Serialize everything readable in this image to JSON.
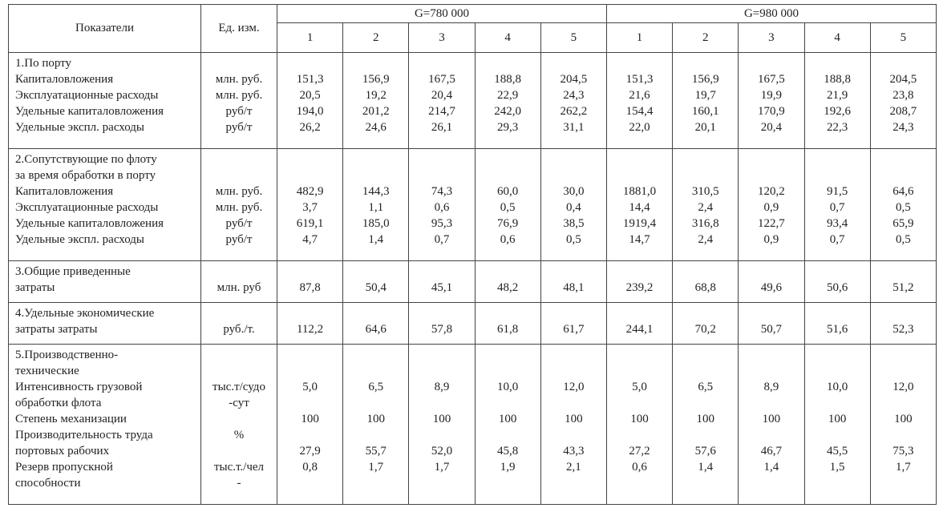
{
  "header": {
    "indicator": "Показатели",
    "unit": "Ед. изм.",
    "groups": [
      {
        "label": "G=780 000",
        "cols": [
          "1",
          "2",
          "3",
          "4",
          "5"
        ]
      },
      {
        "label": "G=980 000",
        "cols": [
          "1",
          "2",
          "3",
          "4",
          "5"
        ]
      }
    ]
  },
  "sections": [
    {
      "lines": [
        {
          "label": "1.По порту"
        },
        {
          "label": "Капиталовложения",
          "unit": "млн. руб.",
          "values": [
            "151,3",
            "156,9",
            "167,5",
            "188,8",
            "204,5",
            "151,3",
            "156,9",
            "167,5",
            "188,8",
            "204,5"
          ]
        },
        {
          "label": "Эксплуатационные расходы",
          "unit": "млн. руб.",
          "values": [
            "20,5",
            "19,2",
            "20,4",
            "22,9",
            "24,3",
            "21,6",
            "19,7",
            "19,9",
            "21,9",
            "23,8"
          ]
        },
        {
          "label": "Удельные капиталовложения",
          "unit": "руб/т",
          "values": [
            "194,0",
            "201,2",
            "214,7",
            "242,0",
            "262,2",
            "154,4",
            "160,1",
            "170,9",
            "192,6",
            "208,7"
          ]
        },
        {
          "label": "Удельные экспл. расходы",
          "unit": "руб/т",
          "values": [
            "26,2",
            "24,6",
            "26,1",
            "29,3",
            "31,1",
            "22,0",
            "20,1",
            "20,4",
            "22,3",
            "24,3"
          ]
        }
      ]
    },
    {
      "lines": [
        {
          "label": "2.Сопутствующие по флоту"
        },
        {
          "label": "за время обработки в порту"
        },
        {
          "label": "Капиталовложения",
          "unit": "млн. руб.",
          "values": [
            "482,9",
            "144,3",
            "74,3",
            "60,0",
            "30,0",
            "1881,0",
            "310,5",
            "120,2",
            "91,5",
            "64,6"
          ]
        },
        {
          "label": "Эксплуатационные расходы",
          "unit": "млн. руб.",
          "values": [
            "3,7",
            "1,1",
            "0,6",
            "0,5",
            "0,4",
            "14,4",
            "2,4",
            "0,9",
            "0,7",
            "0,5"
          ]
        },
        {
          "label": "Удельные капиталовложения",
          "unit": "руб/т",
          "values": [
            "619,1",
            "185,0",
            "95,3",
            "76,9",
            "38,5",
            "1919,4",
            "316,8",
            "122,7",
            "93,4",
            "65,9"
          ]
        },
        {
          "label": "Удельные экспл. расходы",
          "unit": "руб/т",
          "values": [
            "4,7",
            "1,4",
            "0,7",
            "0,6",
            "0,5",
            "14,7",
            "2,4",
            "0,9",
            "0,7",
            "0,5"
          ]
        }
      ]
    },
    {
      "lines": [
        {
          "label": "3.Общие приведенные"
        },
        {
          "label": "затраты",
          "unit": "млн. руб",
          "values": [
            "87,8",
            "50,4",
            "45,1",
            "48,2",
            "48,1",
            "239,2",
            "68,8",
            "49,6",
            "50,6",
            "51,2"
          ]
        }
      ]
    },
    {
      "lines": [
        {
          "label": "4.Удельные экономические"
        },
        {
          "label": "затраты затраты",
          "unit": "руб./т.",
          "values": [
            "112,2",
            "64,6",
            "57,8",
            "61,8",
            "61,7",
            "244,1",
            "70,2",
            "50,7",
            "51,6",
            "52,3"
          ]
        }
      ]
    },
    {
      "lines": [
        {
          "label": "5.Производственно-"
        },
        {
          "label": "технические"
        },
        {
          "label": "Интенсивность грузовой",
          "unit": "тыс.т/судо",
          "values": [
            "5,0",
            "6,5",
            "8,9",
            "10,0",
            "12,0",
            "5,0",
            "6,5",
            "8,9",
            "10,0",
            "12,0"
          ]
        },
        {
          "label": "обработки флота",
          "unit": "-сут"
        },
        {
          "label": "Степень механизации",
          "values": [
            "100",
            "100",
            "100",
            "100",
            "100",
            "100",
            "100",
            "100",
            "100",
            "100"
          ]
        },
        {
          "label": "Производительность труда",
          "unit": "%"
        },
        {
          "label": "портовых рабочих",
          "values": [
            "27,9",
            "55,7",
            "52,0",
            "45,8",
            "43,3",
            "27,2",
            "57,6",
            "46,7",
            "45,5",
            "75,3"
          ]
        },
        {
          "label": "Резерв пропускной",
          "unit": "тыс.т./чел",
          "values": [
            "0,8",
            "1,7",
            "1,7",
            "1,9",
            "2,1",
            "0,6",
            "1,4",
            "1,4",
            "1,5",
            "1,7"
          ]
        },
        {
          "label": "способности",
          "unit": "-"
        }
      ]
    }
  ]
}
